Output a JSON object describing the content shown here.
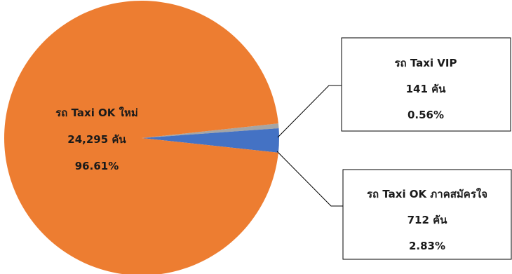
{
  "chart_data": {
    "type": "pie",
    "slices": [
      {
        "name": "รถ Taxi OK ใหม่",
        "value": 24295,
        "unit_label": "24,295 คัน",
        "percent_label": "96.61%",
        "color": "#ED7D31"
      },
      {
        "name": "รถ Taxi OK ภาคสมัครใจ",
        "value": 712,
        "unit_label": "712 คัน",
        "percent_label": "2.83%",
        "color": "#4472C4"
      },
      {
        "name": "รถ Taxi VIP",
        "value": 141,
        "unit_label": "141 คัน",
        "percent_label": "0.56%",
        "color": "#A5A5A5"
      }
    ],
    "title": "",
    "legend": "none"
  }
}
